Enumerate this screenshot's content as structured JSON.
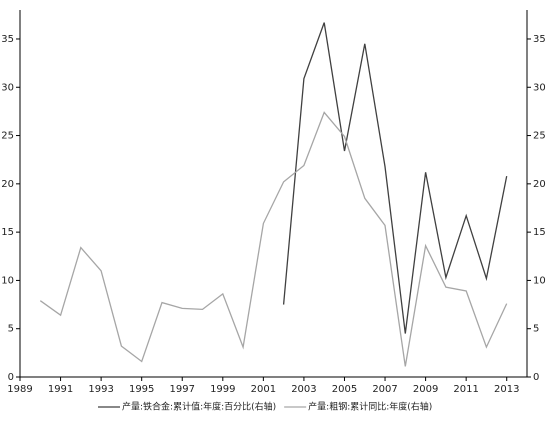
{
  "chart_data": {
    "type": "line",
    "x": [
      1990,
      1991,
      1992,
      1993,
      1994,
      1995,
      1996,
      1997,
      1998,
      1999,
      2000,
      2001,
      2002,
      2003,
      2004,
      2005,
      2006,
      2007,
      2008,
      2009,
      2010,
      2011,
      2012,
      2013
    ],
    "series": [
      {
        "name": "产量:铁合金:累计值:年度:百分比(右轴)",
        "color": "#404040",
        "axis": "y2",
        "values": [
          null,
          null,
          null,
          null,
          null,
          null,
          null,
          null,
          null,
          null,
          null,
          null,
          7.5,
          30.9,
          36.7,
          23.4,
          34.5,
          21.8,
          4.5,
          21.2,
          10.3,
          16.7,
          10.2,
          20.8
        ]
      },
      {
        "name": "产量:粗钢:累计同比:年度(右轴)",
        "color": "#a6a6a6",
        "axis": "y2",
        "values": [
          7.9,
          6.4,
          13.4,
          11.0,
          3.2,
          1.6,
          7.7,
          7.1,
          7.0,
          8.6,
          3.1,
          15.9,
          20.2,
          21.9,
          27.4,
          24.9,
          18.5,
          15.7,
          1.1,
          13.6,
          9.3,
          8.9,
          3.1,
          7.6
        ]
      }
    ],
    "xlim": [
      1989,
      2014
    ],
    "xticks": [
      1989,
      1991,
      1993,
      1995,
      1997,
      1999,
      2001,
      2003,
      2005,
      2007,
      2009,
      2011,
      2013
    ],
    "ylim": [
      0,
      38
    ],
    "yticks": [
      0,
      5,
      10,
      15,
      20,
      25,
      30,
      35
    ],
    "y2lim": [
      0,
      38
    ],
    "y2ticks": [
      0,
      5,
      10,
      15,
      20,
      25,
      30,
      35
    ],
    "legend": "bottom"
  }
}
